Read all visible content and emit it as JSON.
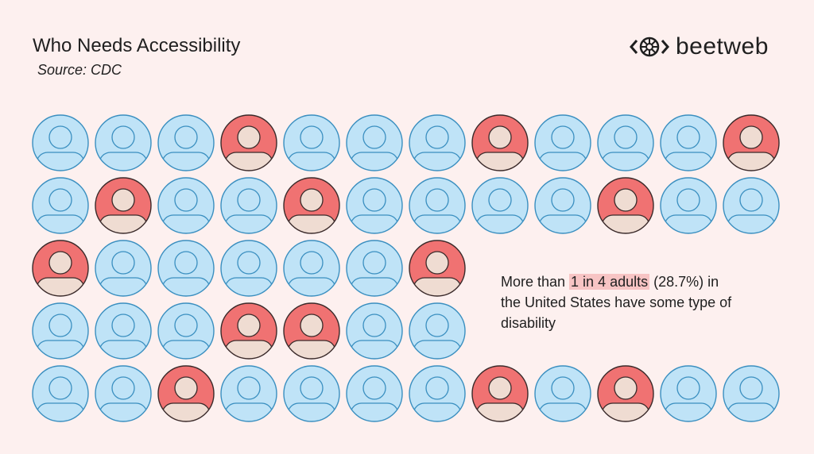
{
  "header": {
    "title": "Who Needs Accessibility",
    "source": "Source: CDC",
    "brand": "beetweb"
  },
  "callout": {
    "before": "More than ",
    "highlight": "1 in 4 adults",
    "after": " (28.7%) in the United States have some type of disability"
  },
  "grid": {
    "rows": [
      [
        0,
        0,
        0,
        1,
        0,
        0,
        0,
        1,
        0,
        0,
        0,
        1
      ],
      [
        0,
        1,
        0,
        0,
        1,
        0,
        0,
        0,
        0,
        1,
        0,
        0
      ],
      [
        1,
        0,
        0,
        0,
        0,
        0,
        1
      ],
      [
        0,
        0,
        0,
        1,
        1,
        0,
        0
      ],
      [
        0,
        0,
        1,
        0,
        0,
        0,
        0,
        1,
        0,
        1,
        0,
        0
      ]
    ]
  }
}
